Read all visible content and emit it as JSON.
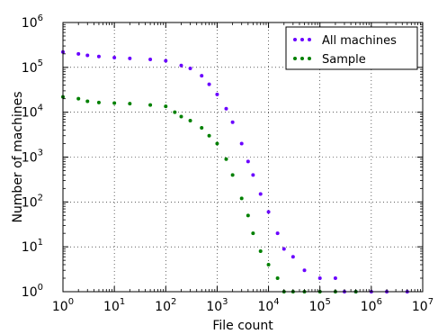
{
  "chart_data": {
    "type": "scatter",
    "xlabel": "File count",
    "ylabel": "Number of machines",
    "xscale": "log",
    "yscale": "log",
    "xlim": [
      1,
      10000000
    ],
    "ylim": [
      1,
      1000000
    ],
    "grid": true,
    "legend_position": "top-right",
    "x_ticks": [
      {
        "base": "10",
        "exp": "0"
      },
      {
        "base": "10",
        "exp": "1"
      },
      {
        "base": "10",
        "exp": "2"
      },
      {
        "base": "10",
        "exp": "3"
      },
      {
        "base": "10",
        "exp": "4"
      },
      {
        "base": "10",
        "exp": "5"
      },
      {
        "base": "10",
        "exp": "6"
      },
      {
        "base": "10",
        "exp": "7"
      }
    ],
    "y_ticks": [
      {
        "base": "10",
        "exp": "0"
      },
      {
        "base": "10",
        "exp": "1"
      },
      {
        "base": "10",
        "exp": "2"
      },
      {
        "base": "10",
        "exp": "3"
      },
      {
        "base": "10",
        "exp": "4"
      },
      {
        "base": "10",
        "exp": "5"
      },
      {
        "base": "10",
        "exp": "6"
      }
    ],
    "series": [
      {
        "name": "All machines",
        "color": "#6a00ff",
        "points": [
          [
            1,
            220000
          ],
          [
            2,
            200000
          ],
          [
            3,
            185000
          ],
          [
            5,
            175000
          ],
          [
            10,
            165000
          ],
          [
            20,
            158000
          ],
          [
            50,
            150000
          ],
          [
            100,
            140000
          ],
          [
            200,
            110000
          ],
          [
            300,
            95000
          ],
          [
            500,
            65000
          ],
          [
            700,
            42000
          ],
          [
            1000,
            25000
          ],
          [
            1500,
            12000
          ],
          [
            2000,
            6000
          ],
          [
            3000,
            2000
          ],
          [
            4000,
            800
          ],
          [
            5000,
            400
          ],
          [
            7000,
            150
          ],
          [
            10000,
            60
          ],
          [
            15000,
            20
          ],
          [
            20000,
            9
          ],
          [
            30000,
            6
          ],
          [
            50000,
            3
          ],
          [
            100000,
            2
          ],
          [
            200000,
            2
          ],
          [
            300000,
            1
          ],
          [
            500000,
            1
          ],
          [
            1000000,
            1
          ],
          [
            2000000,
            1
          ],
          [
            5000000,
            1
          ]
        ]
      },
      {
        "name": "Sample",
        "color": "#008000",
        "points": [
          [
            1,
            22000
          ],
          [
            2,
            20000
          ],
          [
            3,
            17500
          ],
          [
            5,
            16500
          ],
          [
            10,
            16000
          ],
          [
            20,
            15500
          ],
          [
            50,
            14500
          ],
          [
            100,
            13500
          ],
          [
            150,
            10000
          ],
          [
            200,
            8000
          ],
          [
            300,
            6500
          ],
          [
            500,
            4500
          ],
          [
            700,
            3000
          ],
          [
            1000,
            2000
          ],
          [
            1500,
            900
          ],
          [
            2000,
            400
          ],
          [
            3000,
            120
          ],
          [
            4000,
            50
          ],
          [
            5000,
            20
          ],
          [
            7000,
            8
          ],
          [
            10000,
            4
          ],
          [
            15000,
            2
          ],
          [
            20000,
            1
          ],
          [
            30000,
            1
          ],
          [
            50000,
            1
          ],
          [
            100000,
            1
          ],
          [
            200000,
            1
          ],
          [
            500000,
            1
          ]
        ]
      }
    ]
  }
}
